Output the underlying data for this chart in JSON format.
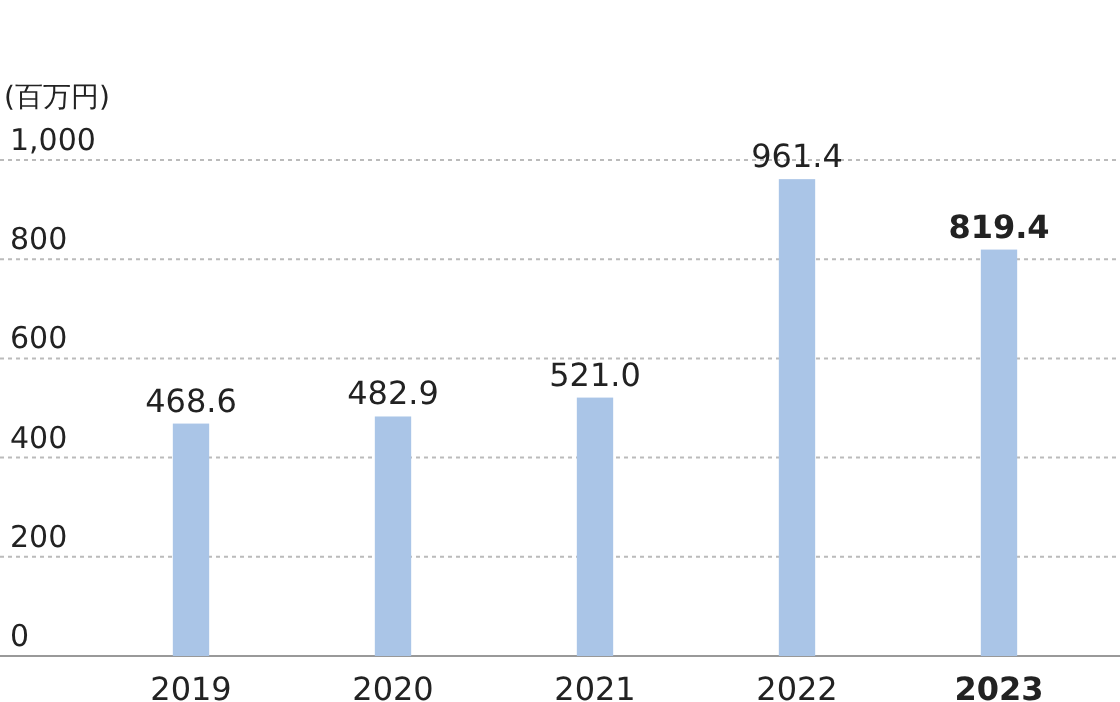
{
  "chart_data": {
    "type": "bar",
    "ylabel": "(百万円)",
    "categories": [
      "2019",
      "2020",
      "2021",
      "2022",
      "2023"
    ],
    "values": [
      468.6,
      482.9,
      521.0,
      961.4,
      819.4
    ],
    "value_labels": [
      "468.6",
      "482.9",
      "521.0",
      "961.4",
      "819.4"
    ],
    "color": "#aac5e7",
    "ylim": [
      0,
      1000
    ],
    "yticks": [
      0,
      200,
      400,
      600,
      800,
      {
        "value": 1000,
        "label": "1,000"
      }
    ],
    "grid": "y"
  }
}
